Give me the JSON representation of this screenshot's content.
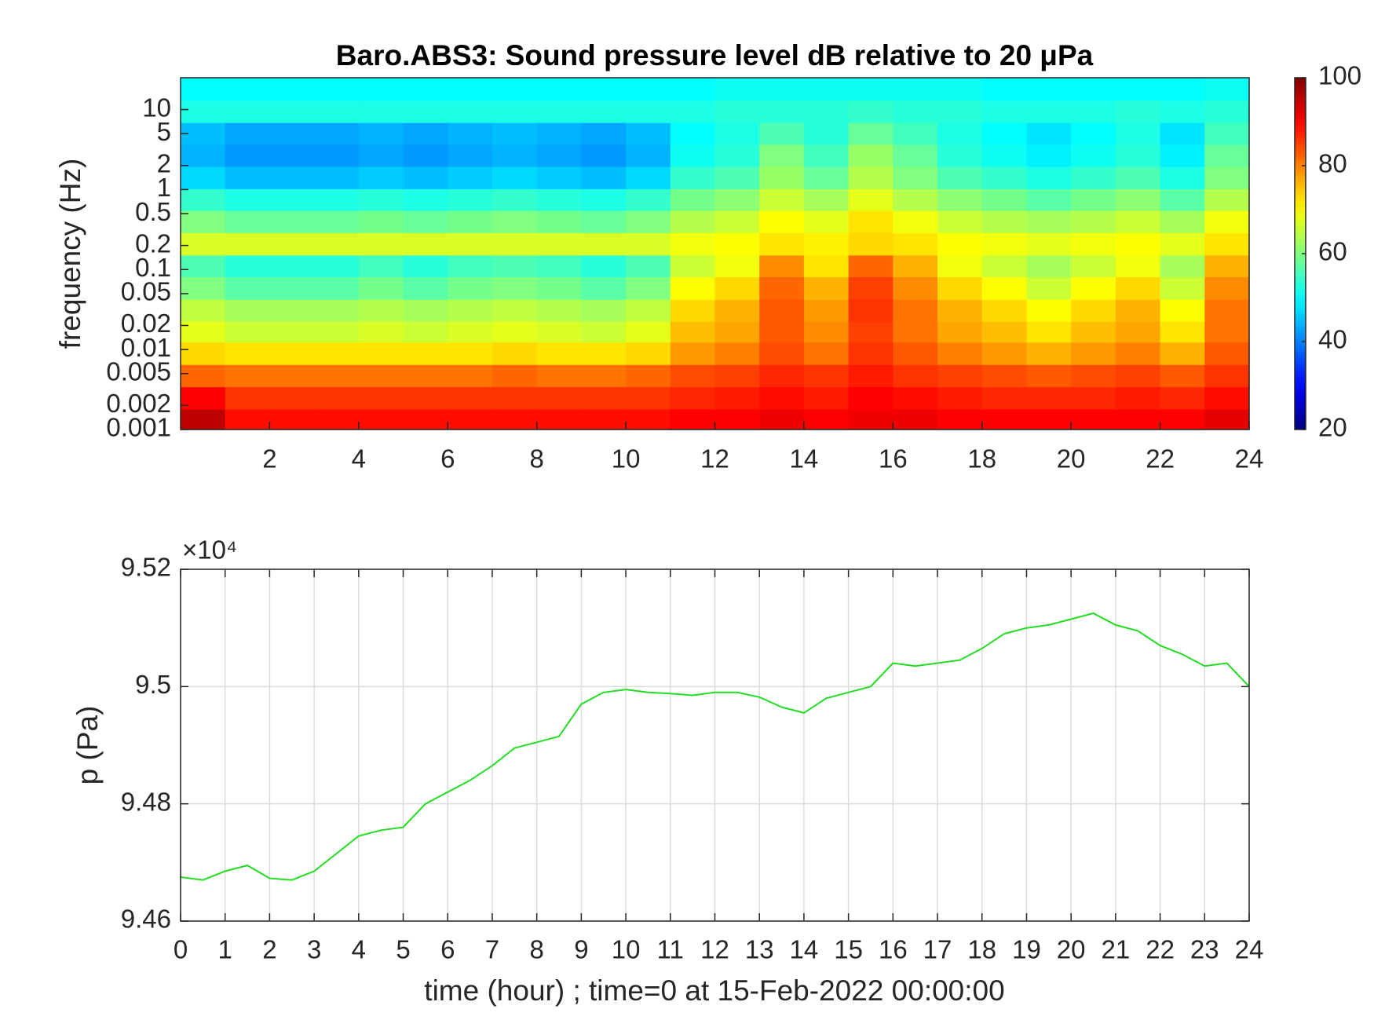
{
  "chart_data": [
    {
      "type": "heatmap",
      "title": "Baro.ABS3: Sound pressure level dB relative to 20 μPa",
      "y_label": "frequency (Hz)",
      "x": [
        0.5,
        1.5,
        2.5,
        3.5,
        4.5,
        5.5,
        6.5,
        7.5,
        8.5,
        9.5,
        10.5,
        11.5,
        12.5,
        13.5,
        14.5,
        15.5,
        16.5,
        17.5,
        18.5,
        19.5,
        20.5,
        21.5,
        22.5,
        23.5
      ],
      "y": [
        0.0013,
        0.0025,
        0.0047,
        0.009,
        0.017,
        0.03,
        0.06,
        0.11,
        0.21,
        0.4,
        0.75,
        1.4,
        2.7,
        5,
        9.5,
        18
      ],
      "values": [
        [
          95,
          89,
          89,
          89,
          89,
          89,
          89,
          89,
          89,
          89,
          89,
          90,
          90,
          91,
          90,
          91,
          91,
          90,
          90,
          90,
          90,
          90,
          90,
          92
        ],
        [
          90,
          86,
          86,
          86,
          86,
          86,
          86,
          86,
          86,
          86,
          86,
          87,
          88,
          89,
          88,
          90,
          89,
          88,
          87,
          87,
          87,
          88,
          87,
          89
        ],
        [
          82,
          81,
          81,
          81,
          81,
          81,
          81,
          82,
          81,
          81,
          82,
          84,
          85,
          87,
          86,
          88,
          86,
          85,
          84,
          83,
          84,
          85,
          83,
          86
        ],
        [
          73,
          72,
          72,
          72,
          72,
          72,
          72,
          73,
          72,
          72,
          73,
          78,
          80,
          84,
          81,
          86,
          83,
          80,
          78,
          76,
          78,
          80,
          76,
          83
        ],
        [
          68,
          66,
          66,
          66,
          67,
          66,
          67,
          68,
          67,
          66,
          68,
          75,
          77,
          83,
          79,
          85,
          81,
          77,
          75,
          72,
          75,
          77,
          72,
          81
        ],
        [
          65,
          63,
          63,
          63,
          64,
          63,
          64,
          65,
          64,
          63,
          65,
          73,
          76,
          83,
          78,
          86,
          81,
          76,
          73,
          70,
          73,
          76,
          70,
          81
        ],
        [
          60,
          57,
          57,
          57,
          59,
          57,
          59,
          60,
          59,
          57,
          60,
          70,
          73,
          82,
          76,
          85,
          79,
          73,
          70,
          66,
          70,
          73,
          66,
          79
        ],
        [
          56,
          53,
          53,
          53,
          55,
          53,
          55,
          56,
          55,
          53,
          56,
          66,
          69,
          79,
          72,
          82,
          76,
          69,
          66,
          63,
          66,
          69,
          63,
          76
        ],
        [
          67,
          67,
          67,
          67,
          67,
          67,
          67,
          67,
          67,
          67,
          67,
          69,
          70,
          72,
          71,
          73,
          72,
          70,
          69,
          68,
          69,
          70,
          68,
          72
        ],
        [
          60,
          58,
          58,
          58,
          59,
          58,
          59,
          60,
          59,
          58,
          60,
          64,
          66,
          70,
          68,
          72,
          69,
          66,
          64,
          63,
          64,
          66,
          63,
          69
        ],
        [
          54,
          52,
          52,
          52,
          53,
          52,
          53,
          54,
          53,
          52,
          54,
          59,
          61,
          66,
          63,
          68,
          64,
          61,
          59,
          57,
          59,
          61,
          57,
          64
        ],
        [
          47,
          45,
          45,
          45,
          46,
          45,
          46,
          47,
          46,
          45,
          47,
          54,
          56,
          62,
          58,
          64,
          60,
          56,
          54,
          52,
          54,
          56,
          52,
          60
        ],
        [
          44,
          42,
          42,
          42,
          43,
          42,
          43,
          44,
          43,
          42,
          44,
          51,
          53,
          60,
          55,
          62,
          58,
          53,
          51,
          49,
          51,
          53,
          49,
          58
        ],
        [
          45,
          43,
          43,
          43,
          44,
          43,
          44,
          45,
          44,
          43,
          45,
          50,
          52,
          56,
          53,
          58,
          55,
          52,
          50,
          48,
          50,
          52,
          48,
          55
        ],
        [
          52,
          52,
          52,
          52,
          52,
          52,
          52,
          52,
          52,
          52,
          52,
          52,
          53,
          53,
          53,
          54,
          53,
          53,
          52,
          52,
          52,
          53,
          52,
          53
        ],
        [
          50,
          50,
          50,
          50,
          50,
          50,
          50,
          50,
          50,
          50,
          50,
          50,
          51,
          51,
          51,
          51,
          51,
          51,
          50,
          50,
          50,
          50,
          50,
          51
        ]
      ],
      "xlim": [
        0,
        24
      ],
      "xticks": [
        2,
        4,
        6,
        8,
        10,
        12,
        14,
        16,
        18,
        20,
        22,
        24
      ],
      "ylim": [
        0.001,
        25
      ],
      "log_y": true,
      "yticks": [
        0.001,
        0.002,
        0.005,
        0.01,
        0.02,
        0.05,
        0.1,
        0.2,
        0.5,
        1,
        2,
        5,
        10
      ],
      "colormap": "jet",
      "clim": [
        20,
        100
      ],
      "cticks": [
        20,
        40,
        60,
        80,
        100
      ]
    },
    {
      "type": "line",
      "x_label": "time (hour) ; time=0 at 15-Feb-2022 00:00:00",
      "y_label": "p (Pa)",
      "y_multiplier_label": "×10⁴",
      "color": "#22dd22",
      "grid": true,
      "x": [
        0,
        0.5,
        1,
        1.5,
        2,
        2.5,
        3,
        3.5,
        4,
        4.5,
        5,
        5.5,
        6,
        6.5,
        7,
        7.5,
        8,
        8.5,
        9,
        9.5,
        10,
        10.5,
        11,
        11.5,
        12,
        12.5,
        13,
        13.5,
        14,
        14.5,
        15,
        15.5,
        16,
        16.5,
        17,
        17.5,
        18,
        18.5,
        19,
        19.5,
        20,
        20.5,
        21,
        21.5,
        22,
        22.5,
        23,
        23.5,
        24
      ],
      "values": [
        94675,
        94670,
        94685,
        94695,
        94673,
        94670,
        94685,
        94715,
        94745,
        94755,
        94760,
        94800,
        94820,
        94840,
        94865,
        94895,
        94905,
        94915,
        94970,
        94990,
        94995,
        94990,
        94988,
        94985,
        94990,
        94990,
        94982,
        94965,
        94955,
        94980,
        94990,
        95000,
        95040,
        95035,
        95040,
        95045,
        95065,
        95090,
        95100,
        95105,
        95115,
        95125,
        95105,
        95095,
        95070,
        95055,
        95035,
        95040,
        95000
      ],
      "xlim": [
        0,
        24
      ],
      "xticks": [
        0,
        1,
        2,
        3,
        4,
        5,
        6,
        7,
        8,
        9,
        10,
        11,
        12,
        13,
        14,
        15,
        16,
        17,
        18,
        19,
        20,
        21,
        22,
        23,
        24
      ],
      "ylim": [
        94600,
        95200
      ],
      "yticks": [
        {
          "value": 94600,
          "label": "9.46"
        },
        {
          "value": 94800,
          "label": "9.48"
        },
        {
          "value": 95000,
          "label": "9.5"
        },
        {
          "value": 95200,
          "label": "9.52"
        }
      ]
    }
  ]
}
